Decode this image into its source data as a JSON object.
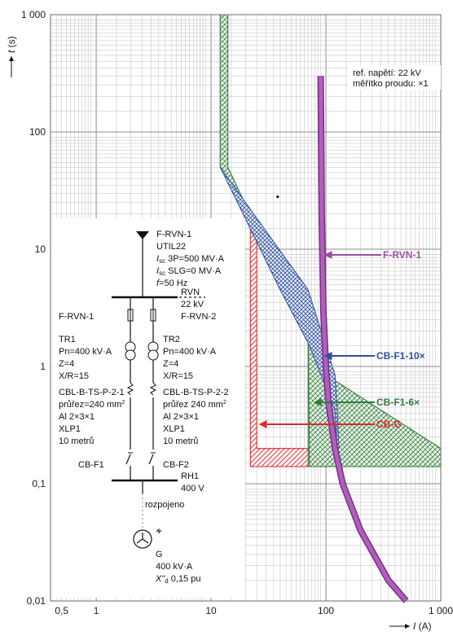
{
  "chart_data": {
    "type": "line",
    "title": "",
    "x_axis": {
      "label": "I (A)",
      "scale": "log",
      "range": [
        0.4,
        1000
      ],
      "tick_labels": [
        "0,5",
        "1",
        "10",
        "100",
        "1 000"
      ],
      "tick_values": [
        0.5,
        1,
        10,
        100,
        1000
      ]
    },
    "y_axis": {
      "label": "t (s)",
      "scale": "log",
      "range": [
        0.01,
        1000
      ],
      "tick_labels": [
        "0,01",
        "0,1",
        "1",
        "10",
        "100",
        "1 000"
      ],
      "tick_values": [
        0.01,
        0.1,
        1,
        10,
        100,
        1000
      ]
    },
    "grid": true,
    "note_lines": [
      "ref. napětí: 22 kV",
      "měřítko proudu: ×1"
    ],
    "series": [
      {
        "name": "F-RVN-1",
        "color": "#9b4fa3",
        "style": "band",
        "points": [
          [
            90,
            300
          ],
          [
            92,
            20
          ],
          [
            95,
            3
          ],
          [
            100,
            1
          ],
          [
            105,
            0.5
          ],
          [
            120,
            0.2
          ],
          [
            140,
            0.1
          ],
          [
            200,
            0.04
          ],
          [
            350,
            0.015
          ],
          [
            500,
            0.01
          ]
        ],
        "label_at": [
          96,
          9.5
        ]
      },
      {
        "name": "CB-F1-10×",
        "color": "#2e4f9e",
        "style": "hatched-band",
        "min": [
          [
            12,
            50
          ],
          [
            40,
            4.5
          ],
          [
            72,
            1.5
          ],
          [
            120,
            0.42
          ],
          [
            125,
            0.2
          ]
        ],
        "max": [
          [
            12,
            50
          ],
          [
            70,
            4.5
          ],
          [
            120,
            0.85
          ],
          [
            125,
            0.45
          ],
          [
            130,
            0.2
          ]
        ],
        "label_at": [
          96,
          1.1
        ]
      },
      {
        "name": "CB-F1-6×",
        "color": "#2f7d3a",
        "style": "hatched-band",
        "min": [
          [
            12,
            1000
          ],
          [
            12,
            50
          ],
          [
            70,
            2.5
          ],
          [
            72,
            0.14
          ],
          [
            1000,
            0.14
          ]
        ],
        "max": [
          [
            14,
            1000
          ],
          [
            14,
            50
          ],
          [
            100,
            0.85
          ],
          [
            1000,
            0.2
          ]
        ],
        "label_at": [
          78,
          0.48
        ]
      },
      {
        "name": "CB-G",
        "color": "#e3252b",
        "style": "hatched-band",
        "min": [
          [
            22,
            15
          ],
          [
            22,
            0.14
          ],
          [
            72,
            0.14
          ]
        ],
        "max": [
          [
            25,
            15
          ],
          [
            25,
            0.2
          ],
          [
            72,
            0.2
          ]
        ],
        "label_at": [
          26,
          0.3
        ]
      }
    ]
  },
  "single_line_diagram": {
    "source": {
      "name": "F-RVN-1",
      "util": "UTIL22",
      "isc_3p": "3P=500 MV·A",
      "isc_slg": "SLG=0 MV·A",
      "freq": "=50 Hz"
    },
    "bus_rvn": {
      "name": "RVN",
      "voltage": "22 kV",
      "feeder": "F-RVN-2"
    },
    "fuse_label": "F-RVN-1",
    "tr1": {
      "name": "TR1",
      "pn": "Pn=400 kV·A",
      "z": "Z=4",
      "xr": "X/R=15"
    },
    "tr2": {
      "name": "TR2",
      "pn": "Pn=400 kV·A",
      "z": "Z=4",
      "xr": "X/R=15"
    },
    "cable1": {
      "name": "CBL-B-TS-P-2-1",
      "section": "průřez=240 mm",
      "cond": "Al 2×3×1",
      "ins": "XLP1",
      "len": "10 metrů"
    },
    "cable2": {
      "name": "CBL-B-TS-P-2-2",
      "section": "průřez 240 mm",
      "cond": "Al 2×3×1",
      "ins": "XLP1",
      "len": "10 metrů"
    },
    "cb1": "CB-F1",
    "cb2": "CB-F2",
    "bus_rh": {
      "name": "RH1",
      "voltage": "400 V"
    },
    "state": "rozpojeno",
    "gen": {
      "name": "G",
      "power": "400 kV·A",
      "reactance": "0,15 pu"
    }
  }
}
